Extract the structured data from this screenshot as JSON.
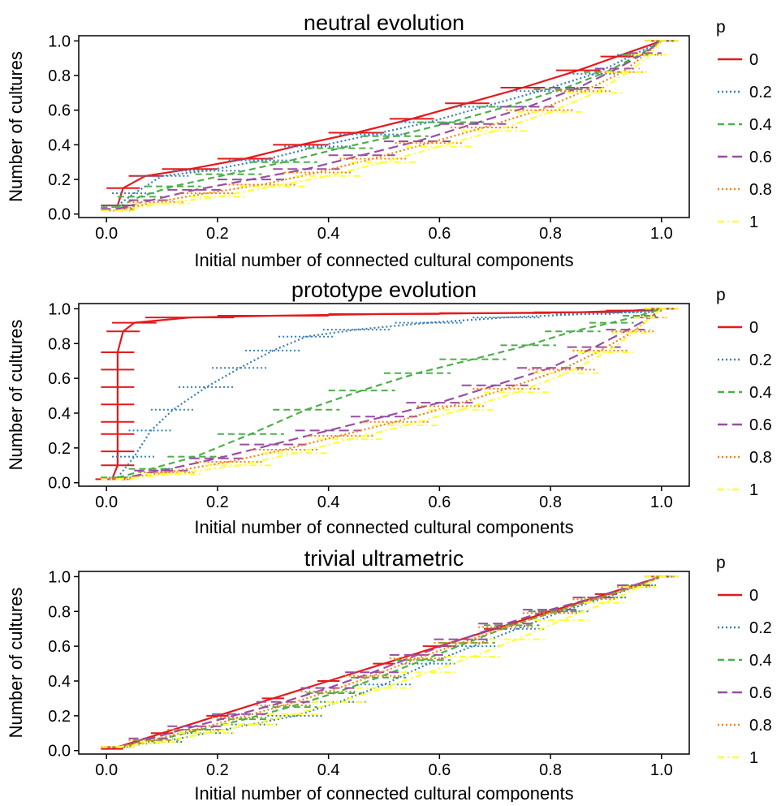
{
  "legend": {
    "title": "p",
    "entries": [
      {
        "label": "0",
        "color": "#e41a1c",
        "dash": "solid"
      },
      {
        "label": "0.2",
        "color": "#377eb8",
        "dash": "dotted"
      },
      {
        "label": "0.4",
        "color": "#4daf4a",
        "dash": "dashed"
      },
      {
        "label": "0.6",
        "color": "#984ea3",
        "dash": "longdash"
      },
      {
        "label": "0.8",
        "color": "#ff7f00",
        "dash": "dotted"
      },
      {
        "label": "1",
        "color": "#ffff33",
        "dash": "dotdash"
      }
    ]
  },
  "chart_data": [
    {
      "type": "line",
      "title": "neutral evolution",
      "xlabel": "Initial number of connected cultural components",
      "ylabel": "Number of cultures",
      "xticks": [
        "0.0",
        "0.2",
        "0.4",
        "0.6",
        "0.8",
        "1.0"
      ],
      "yticks": [
        "0.0",
        "0.2",
        "0.4",
        "0.6",
        "0.8",
        "1.0"
      ],
      "xlim": [
        -0.05,
        1.05
      ],
      "ylim": [
        -0.02,
        1.03
      ],
      "series": [
        {
          "name": "0",
          "x": [
            0.02,
            0.03,
            0.07,
            0.15,
            0.25,
            0.35,
            0.45,
            0.55,
            0.65,
            0.75,
            0.85,
            0.92,
            1.0
          ],
          "y": [
            0.05,
            0.15,
            0.22,
            0.26,
            0.32,
            0.4,
            0.47,
            0.55,
            0.64,
            0.73,
            0.83,
            0.91,
            1.0
          ],
          "xerr": [
            0.03,
            0.03,
            0.03,
            0.05,
            0.05,
            0.05,
            0.05,
            0.04,
            0.04,
            0.04,
            0.04,
            0.03,
            0.03
          ]
        },
        {
          "name": "0.2",
          "x": [
            0.02,
            0.05,
            0.1,
            0.18,
            0.28,
            0.38,
            0.48,
            0.58,
            0.68,
            0.78,
            0.88,
            0.95,
            1.0
          ],
          "y": [
            0.05,
            0.12,
            0.22,
            0.25,
            0.31,
            0.39,
            0.46,
            0.53,
            0.62,
            0.71,
            0.81,
            0.92,
            1.0
          ],
          "xerr": [
            0.03,
            0.04,
            0.05,
            0.06,
            0.06,
            0.06,
            0.06,
            0.05,
            0.05,
            0.05,
            0.04,
            0.03,
            0.03
          ]
        },
        {
          "name": "0.4",
          "x": [
            0.02,
            0.06,
            0.12,
            0.22,
            0.32,
            0.42,
            0.52,
            0.62,
            0.72,
            0.82,
            0.9,
            0.96,
            1.0
          ],
          "y": [
            0.04,
            0.1,
            0.16,
            0.23,
            0.3,
            0.38,
            0.45,
            0.53,
            0.62,
            0.72,
            0.82,
            0.92,
            1.0
          ],
          "xerr": [
            0.03,
            0.04,
            0.05,
            0.06,
            0.06,
            0.06,
            0.06,
            0.06,
            0.05,
            0.05,
            0.04,
            0.03,
            0.03
          ]
        },
        {
          "name": "0.6",
          "x": [
            0.02,
            0.08,
            0.16,
            0.26,
            0.36,
            0.46,
            0.56,
            0.66,
            0.76,
            0.85,
            0.92,
            0.97,
            1.0
          ],
          "y": [
            0.03,
            0.08,
            0.14,
            0.2,
            0.26,
            0.34,
            0.42,
            0.52,
            0.62,
            0.73,
            0.84,
            0.93,
            1.0
          ],
          "xerr": [
            0.03,
            0.04,
            0.05,
            0.06,
            0.06,
            0.06,
            0.06,
            0.06,
            0.05,
            0.05,
            0.04,
            0.03,
            0.03
          ]
        },
        {
          "name": "0.8",
          "x": [
            0.02,
            0.09,
            0.18,
            0.28,
            0.38,
            0.48,
            0.58,
            0.68,
            0.78,
            0.86,
            0.93,
            0.97,
            1.0
          ],
          "y": [
            0.02,
            0.07,
            0.12,
            0.17,
            0.24,
            0.32,
            0.41,
            0.5,
            0.6,
            0.71,
            0.82,
            0.92,
            1.0
          ],
          "xerr": [
            0.03,
            0.05,
            0.05,
            0.06,
            0.06,
            0.06,
            0.06,
            0.06,
            0.06,
            0.05,
            0.04,
            0.03,
            0.03
          ]
        },
        {
          "name": "1",
          "x": [
            0.02,
            0.1,
            0.2,
            0.3,
            0.4,
            0.5,
            0.6,
            0.7,
            0.8,
            0.88,
            0.94,
            0.98,
            1.0
          ],
          "y": [
            0.02,
            0.06,
            0.1,
            0.16,
            0.22,
            0.3,
            0.39,
            0.48,
            0.59,
            0.7,
            0.82,
            0.92,
            1.0
          ],
          "xerr": [
            0.03,
            0.05,
            0.05,
            0.06,
            0.06,
            0.06,
            0.06,
            0.06,
            0.06,
            0.05,
            0.04,
            0.03,
            0.03
          ]
        }
      ]
    },
    {
      "type": "line",
      "title": "prototype evolution",
      "xlabel": "Initial number of connected cultural components",
      "ylabel": "Number of cultures",
      "xticks": [
        "0.0",
        "0.2",
        "0.4",
        "0.6",
        "0.8",
        "1.0"
      ],
      "yticks": [
        "0.0",
        "0.2",
        "0.4",
        "0.6",
        "0.8",
        "1.0"
      ],
      "xlim": [
        -0.05,
        1.05
      ],
      "ylim": [
        -0.02,
        1.03
      ],
      "series": [
        {
          "name": "0",
          "x": [
            0.01,
            0.02,
            0.02,
            0.02,
            0.02,
            0.02,
            0.02,
            0.02,
            0.02,
            0.03,
            0.05,
            0.15,
            0.3,
            0.5,
            0.7,
            0.85,
            0.95,
            1.0
          ],
          "y": [
            0.02,
            0.1,
            0.18,
            0.28,
            0.35,
            0.45,
            0.55,
            0.65,
            0.75,
            0.87,
            0.92,
            0.95,
            0.96,
            0.97,
            0.975,
            0.98,
            0.99,
            1.0
          ],
          "xerr": [
            0.03,
            0.03,
            0.03,
            0.03,
            0.03,
            0.03,
            0.03,
            0.03,
            0.03,
            0.03,
            0.04,
            0.08,
            0.1,
            0.1,
            0.1,
            0.08,
            0.05,
            0.03
          ]
        },
        {
          "name": "0.2",
          "x": [
            0.02,
            0.05,
            0.08,
            0.12,
            0.18,
            0.24,
            0.3,
            0.36,
            0.45,
            0.58,
            0.72,
            0.86,
            0.95,
            1.0
          ],
          "y": [
            0.03,
            0.15,
            0.3,
            0.42,
            0.55,
            0.66,
            0.76,
            0.84,
            0.88,
            0.92,
            0.95,
            0.97,
            0.98,
            1.0
          ],
          "xerr": [
            0.03,
            0.04,
            0.04,
            0.04,
            0.05,
            0.05,
            0.05,
            0.05,
            0.06,
            0.06,
            0.06,
            0.05,
            0.04,
            0.03
          ]
        },
        {
          "name": "0.4",
          "x": [
            0.02,
            0.08,
            0.16,
            0.26,
            0.36,
            0.46,
            0.56,
            0.66,
            0.76,
            0.84,
            0.91,
            0.96,
            1.0
          ],
          "y": [
            0.03,
            0.08,
            0.15,
            0.28,
            0.42,
            0.53,
            0.63,
            0.71,
            0.79,
            0.87,
            0.92,
            0.96,
            1.0
          ],
          "xerr": [
            0.03,
            0.04,
            0.05,
            0.06,
            0.06,
            0.06,
            0.06,
            0.06,
            0.05,
            0.05,
            0.04,
            0.03,
            0.03
          ]
        },
        {
          "name": "0.6",
          "x": [
            0.02,
            0.1,
            0.2,
            0.3,
            0.4,
            0.5,
            0.6,
            0.7,
            0.8,
            0.88,
            0.94,
            0.98,
            1.0
          ],
          "y": [
            0.02,
            0.07,
            0.14,
            0.22,
            0.3,
            0.38,
            0.46,
            0.56,
            0.66,
            0.78,
            0.88,
            0.95,
            1.0
          ],
          "xerr": [
            0.03,
            0.05,
            0.05,
            0.06,
            0.06,
            0.06,
            0.06,
            0.06,
            0.06,
            0.05,
            0.04,
            0.03,
            0.03
          ]
        },
        {
          "name": "0.8",
          "x": [
            0.02,
            0.11,
            0.22,
            0.32,
            0.42,
            0.52,
            0.62,
            0.72,
            0.82,
            0.89,
            0.95,
            0.98,
            1.0
          ],
          "y": [
            0.02,
            0.06,
            0.12,
            0.19,
            0.27,
            0.35,
            0.44,
            0.54,
            0.65,
            0.76,
            0.87,
            0.95,
            1.0
          ],
          "xerr": [
            0.03,
            0.05,
            0.06,
            0.06,
            0.06,
            0.06,
            0.06,
            0.06,
            0.06,
            0.05,
            0.04,
            0.03,
            0.03
          ]
        },
        {
          "name": "1",
          "x": [
            0.02,
            0.12,
            0.24,
            0.34,
            0.44,
            0.54,
            0.64,
            0.74,
            0.83,
            0.9,
            0.95,
            0.98,
            1.0
          ],
          "y": [
            0.02,
            0.05,
            0.1,
            0.17,
            0.25,
            0.33,
            0.42,
            0.52,
            0.63,
            0.75,
            0.86,
            0.95,
            1.0
          ],
          "xerr": [
            0.03,
            0.05,
            0.06,
            0.06,
            0.06,
            0.06,
            0.06,
            0.06,
            0.06,
            0.05,
            0.04,
            0.03,
            0.03
          ]
        }
      ]
    },
    {
      "type": "line",
      "title": "trivial ultrametric",
      "xlabel": "Initial number of connected cultural components",
      "ylabel": "Number of cultures",
      "xticks": [
        "0.0",
        "0.2",
        "0.4",
        "0.6",
        "0.8",
        "1.0"
      ],
      "yticks": [
        "0.0",
        "0.2",
        "0.4",
        "0.6",
        "0.8",
        "1.0"
      ],
      "xlim": [
        -0.05,
        1.05
      ],
      "ylim": [
        -0.02,
        1.03
      ],
      "series": [
        {
          "name": "0",
          "x": [
            0.01,
            0.1,
            0.2,
            0.3,
            0.4,
            0.5,
            0.6,
            0.7,
            0.8,
            0.9,
            1.0
          ],
          "y": [
            0.01,
            0.1,
            0.2,
            0.3,
            0.4,
            0.5,
            0.6,
            0.7,
            0.8,
            0.9,
            1.0
          ],
          "xerr": [
            0.02,
            0.02,
            0.02,
            0.02,
            0.02,
            0.02,
            0.03,
            0.02,
            0.02,
            0.02,
            0.02
          ]
        },
        {
          "name": "0.2",
          "x": [
            0.02,
            0.1,
            0.18,
            0.26,
            0.34,
            0.42,
            0.5,
            0.58,
            0.66,
            0.74,
            0.82,
            0.9,
            0.96,
            1.0
          ],
          "y": [
            0.02,
            0.05,
            0.1,
            0.15,
            0.2,
            0.28,
            0.38,
            0.5,
            0.6,
            0.7,
            0.8,
            0.88,
            0.95,
            1.0
          ],
          "xerr": [
            0.03,
            0.04,
            0.05,
            0.05,
            0.05,
            0.05,
            0.05,
            0.05,
            0.05,
            0.05,
            0.05,
            0.04,
            0.03,
            0.03
          ]
        },
        {
          "name": "0.4",
          "x": [
            0.02,
            0.09,
            0.17,
            0.25,
            0.33,
            0.41,
            0.49,
            0.57,
            0.65,
            0.73,
            0.81,
            0.89,
            0.96,
            1.0
          ],
          "y": [
            0.02,
            0.06,
            0.12,
            0.18,
            0.25,
            0.33,
            0.42,
            0.52,
            0.62,
            0.72,
            0.8,
            0.88,
            0.95,
            1.0
          ],
          "xerr": [
            0.03,
            0.04,
            0.05,
            0.05,
            0.05,
            0.05,
            0.05,
            0.05,
            0.05,
            0.05,
            0.05,
            0.04,
            0.03,
            0.03
          ]
        },
        {
          "name": "0.6",
          "x": [
            0.02,
            0.08,
            0.16,
            0.24,
            0.32,
            0.4,
            0.48,
            0.56,
            0.64,
            0.72,
            0.8,
            0.88,
            0.95,
            1.0
          ],
          "y": [
            0.02,
            0.07,
            0.14,
            0.21,
            0.28,
            0.36,
            0.45,
            0.55,
            0.64,
            0.73,
            0.81,
            0.88,
            0.95,
            1.0
          ],
          "xerr": [
            0.03,
            0.04,
            0.05,
            0.05,
            0.05,
            0.05,
            0.05,
            0.05,
            0.05,
            0.05,
            0.05,
            0.04,
            0.03,
            0.03
          ]
        },
        {
          "name": "0.8",
          "x": [
            0.02,
            0.08,
            0.16,
            0.24,
            0.32,
            0.4,
            0.48,
            0.56,
            0.64,
            0.72,
            0.8,
            0.88,
            0.95,
            1.0
          ],
          "y": [
            0.02,
            0.06,
            0.12,
            0.19,
            0.26,
            0.34,
            0.43,
            0.53,
            0.62,
            0.71,
            0.79,
            0.87,
            0.94,
            1.0
          ],
          "xerr": [
            0.03,
            0.04,
            0.05,
            0.05,
            0.05,
            0.05,
            0.05,
            0.05,
            0.05,
            0.05,
            0.05,
            0.04,
            0.03,
            0.03
          ]
        },
        {
          "name": "1",
          "x": [
            0.02,
            0.1,
            0.18,
            0.26,
            0.34,
            0.42,
            0.5,
            0.58,
            0.66,
            0.74,
            0.82,
            0.9,
            0.96,
            1.0
          ],
          "y": [
            0.02,
            0.05,
            0.1,
            0.15,
            0.21,
            0.28,
            0.36,
            0.45,
            0.54,
            0.64,
            0.75,
            0.85,
            0.94,
            1.0
          ],
          "xerr": [
            0.03,
            0.04,
            0.05,
            0.05,
            0.05,
            0.05,
            0.05,
            0.05,
            0.05,
            0.05,
            0.05,
            0.04,
            0.03,
            0.03
          ]
        }
      ]
    }
  ]
}
